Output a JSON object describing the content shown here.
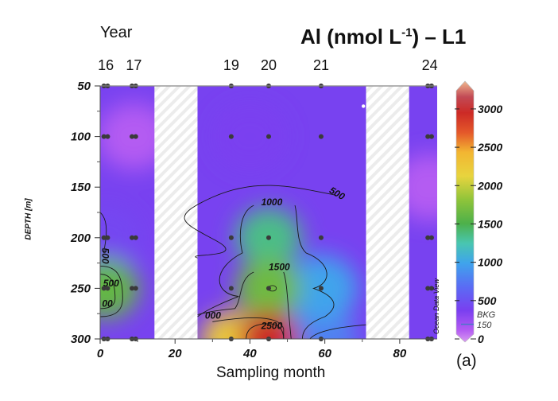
{
  "chart_data": {
    "type": "heatmap",
    "title": "Al (nmol L-1) – L1",
    "title_main": "Al (nmol L",
    "title_sup": "-1",
    "title_tail": ") – L1",
    "xlabel": "Sampling month",
    "ylabel": "DEPTH [m]",
    "xlim": [
      0,
      90
    ],
    "ylim": [
      300,
      50
    ],
    "x_ticks": [
      0,
      20,
      40,
      60,
      80
    ],
    "y_ticks": [
      50,
      100,
      150,
      200,
      250,
      300
    ],
    "top_axis_label": "Year",
    "top_ticks": [
      {
        "label": "16",
        "month": 1.5
      },
      {
        "label": "17",
        "month": 9
      },
      {
        "label": "19",
        "month": 35
      },
      {
        "label": "20",
        "month": 45
      },
      {
        "label": "21",
        "month": 59
      },
      {
        "label": "24",
        "month": 88
      }
    ],
    "no_data_gaps": [
      [
        14.5,
        26
      ],
      [
        71,
        82.5
      ]
    ],
    "colorbar": {
      "label": "Al (nmol L-1)",
      "range": [
        0,
        3300
      ],
      "ticks": [
        0,
        500,
        1000,
        1500,
        2000,
        2500,
        3000
      ],
      "stops": [
        {
          "v": 0,
          "c": "#d89af0"
        },
        {
          "v": 150,
          "c": "#b45cf2"
        },
        {
          "v": 400,
          "c": "#7a3ff0"
        },
        {
          "v": 700,
          "c": "#5a6cf4"
        },
        {
          "v": 1000,
          "c": "#3fa4ec"
        },
        {
          "v": 1250,
          "c": "#49c6b0"
        },
        {
          "v": 1500,
          "c": "#4db04a"
        },
        {
          "v": 1800,
          "c": "#8fc43a"
        },
        {
          "v": 2100,
          "c": "#e8d43e"
        },
        {
          "v": 2400,
          "c": "#f2b632"
        },
        {
          "v": 2650,
          "c": "#e4582a"
        },
        {
          "v": 2900,
          "c": "#cc2a26"
        },
        {
          "v": 3100,
          "c": "#c24a55"
        },
        {
          "v": 3300,
          "c": "#f0b88e"
        }
      ]
    },
    "sample_points": [
      {
        "month": 1,
        "depths": [
          50,
          100,
          200,
          250,
          300
        ]
      },
      {
        "month": 2,
        "depths": [
          50,
          100,
          200,
          250,
          300
        ]
      },
      {
        "month": 8.5,
        "depths": [
          50,
          100,
          200,
          250,
          300
        ]
      },
      {
        "month": 9.5,
        "depths": [
          50,
          100,
          200,
          250,
          300
        ]
      },
      {
        "month": 35,
        "depths": [
          50,
          100,
          200,
          250,
          300
        ]
      },
      {
        "month": 45,
        "depths": [
          50,
          100,
          200,
          250,
          300
        ]
      },
      {
        "month": 59,
        "depths": [
          50,
          100,
          200,
          250,
          300
        ]
      },
      {
        "month": 87.5,
        "depths": [
          50,
          100,
          200,
          250,
          300
        ]
      },
      {
        "month": 88.5,
        "depths": [
          50,
          100,
          200,
          250,
          300
        ]
      }
    ],
    "field_estimates": [
      {
        "month": 1.5,
        "depth": 250,
        "value": 1600
      },
      {
        "month": 1.5,
        "depth": 200,
        "value": 450
      },
      {
        "month": 9,
        "depth": 100,
        "value": 150
      },
      {
        "month": 35,
        "depth": 300,
        "value": 2200
      },
      {
        "month": 45,
        "depth": 300,
        "value": 2900
      },
      {
        "month": 45,
        "depth": 250,
        "value": 1650
      },
      {
        "month": 45,
        "depth": 200,
        "value": 1350
      },
      {
        "month": 59,
        "depth": 250,
        "value": 1000
      },
      {
        "month": 59,
        "depth": 300,
        "value": 800
      },
      {
        "month": 40,
        "depth": 100,
        "value": 400
      },
      {
        "month": 88,
        "depth": 150,
        "value": 150
      }
    ],
    "contour_labels": [
      {
        "text": "500",
        "month": 61,
        "depth": 155
      },
      {
        "text": "1000",
        "month": 43,
        "depth": 168
      },
      {
        "text": "1500",
        "month": 45,
        "depth": 232
      },
      {
        "text": "2500",
        "month": 43,
        "depth": 290
      },
      {
        "text": "000",
        "month": 28,
        "depth": 280
      },
      {
        "text": "500",
        "month": 0.5,
        "depth": 210
      },
      {
        "text": "500",
        "month": 0.8,
        "depth": 248
      },
      {
        "text": "00",
        "month": 0.5,
        "depth": 268
      }
    ]
  },
  "labels": {
    "panel": "(a)",
    "watermark": "Ocean Data View",
    "bkg_line1": "BKG",
    "bkg_line2": "150"
  },
  "colors": {
    "contour": "#1a1a1a",
    "sample_dot": "#3a3a3a",
    "gap_hatch": "#ececec",
    "bkg_line": "#4a78c8"
  }
}
